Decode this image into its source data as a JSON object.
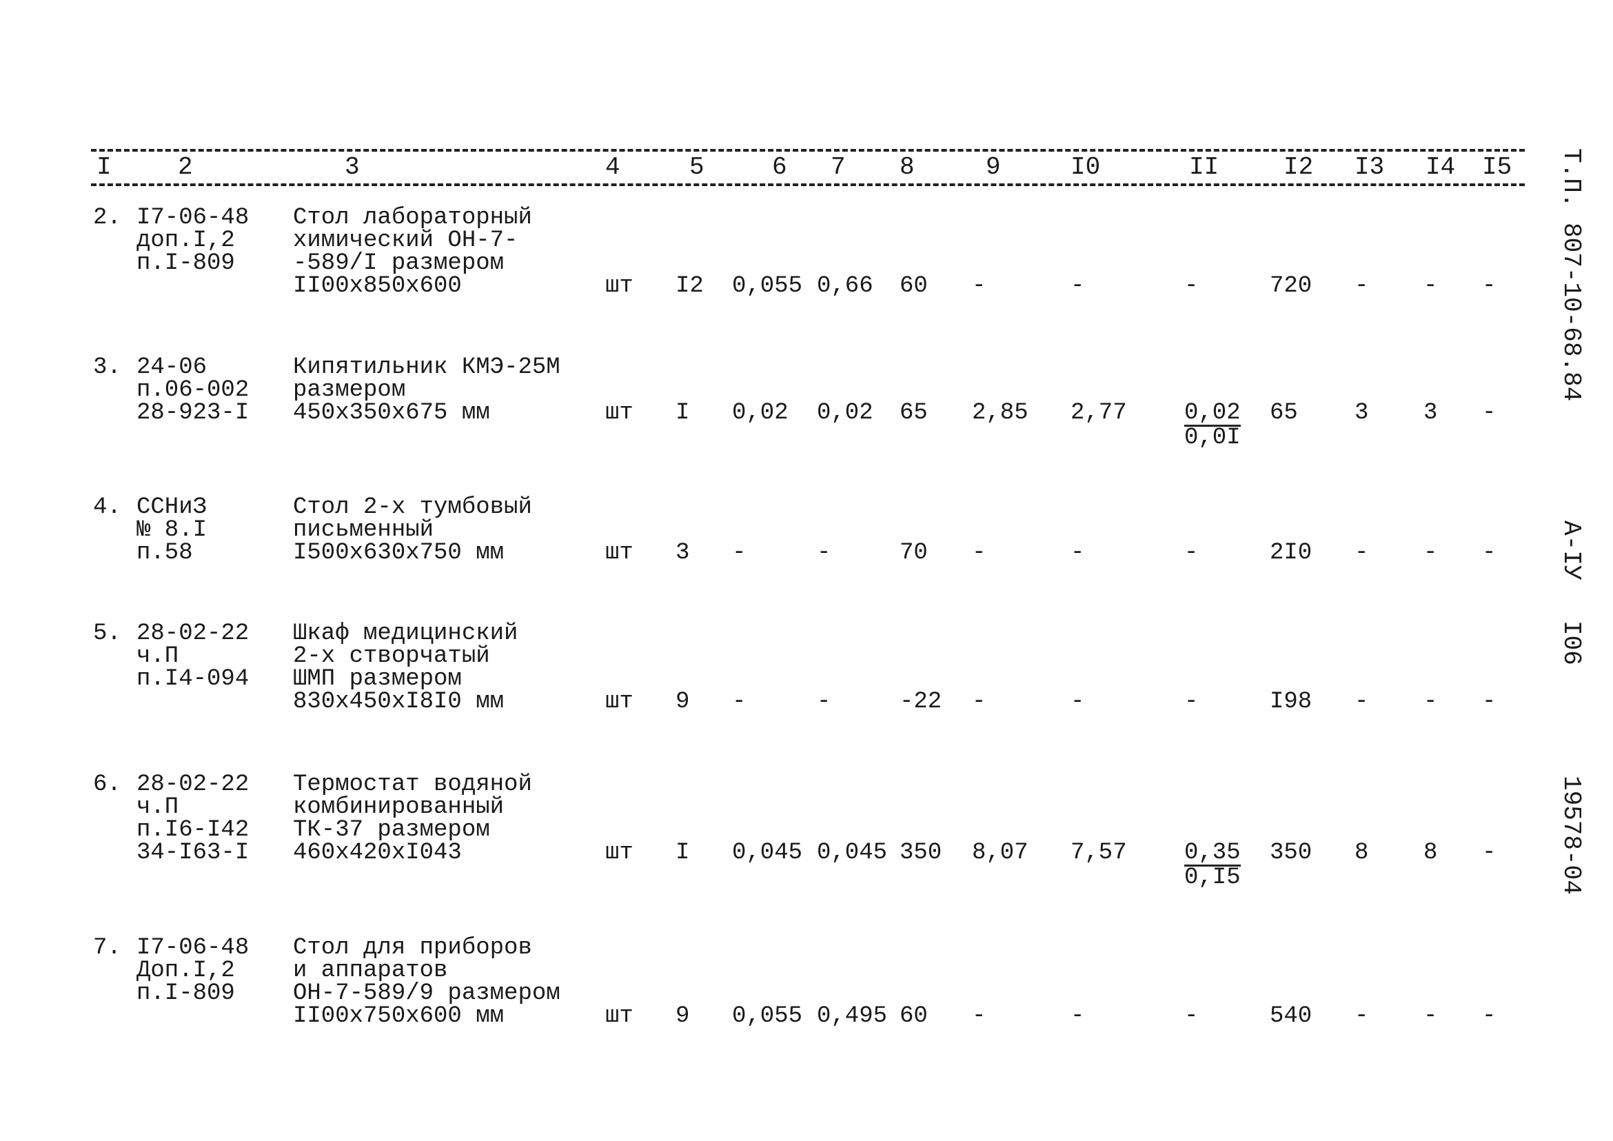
{
  "header": {
    "columns": [
      "I",
      "2",
      "3",
      "4",
      "5",
      "6",
      "7",
      "8",
      "9",
      "I0",
      "II",
      "I2",
      "I3",
      "I4",
      "I5"
    ]
  },
  "rows": [
    {
      "no": "2.",
      "code": [
        "I7-06-48",
        "доп.I,2",
        "п.I-809"
      ],
      "description": [
        "Стол лабораторный",
        "химический ОН-7-",
        "-589/I размером",
        "II00x850x600"
      ],
      "unit": "шт",
      "c5": "I2",
      "c6": "0,055",
      "c7": "0,66",
      "c8": "60",
      "c9": "-",
      "c10": "-",
      "c11": "-",
      "c12": "720",
      "c13": "-",
      "c14": "-",
      "c15": "-"
    },
    {
      "no": "3.",
      "code": [
        "24-06",
        "п.06-002",
        "28-923-I"
      ],
      "description": [
        "Кипятильник КМЭ-25М",
        "размером",
        "450x350x675 мм"
      ],
      "unit": "шт",
      "c5": "I",
      "c6": "0,02",
      "c7": "0,02",
      "c8": "65",
      "c9": "2,85",
      "c10": "2,77",
      "c11": {
        "top": "0,02",
        "bottom": "0,0I"
      },
      "c12": "65",
      "c13": "3",
      "c14": "3",
      "c15": "-"
    },
    {
      "no": "4.",
      "code": [
        "ССНиЗ",
        "№ 8.I",
        "п.58"
      ],
      "description": [
        "Стол 2-х тумбовый",
        "письменный",
        "I500x630x750 мм"
      ],
      "unit": "шт",
      "c5": "3",
      "c6": "-",
      "c7": "-",
      "c8": "70",
      "c9": "-",
      "c10": "-",
      "c11": "-",
      "c12": "2I0",
      "c13": "-",
      "c14": "-",
      "c15": "-"
    },
    {
      "no": "5.",
      "code": [
        "28-02-22",
        "ч.П",
        "п.I4-094"
      ],
      "description": [
        "Шкаф медицинский",
        "2-х створчатый",
        "ШМП размером",
        "830x450xI8I0 мм"
      ],
      "unit": "шт",
      "c5": "9",
      "c6": "-",
      "c7": "-",
      "c8": "-22",
      "c9": "-",
      "c10": "-",
      "c11": "-",
      "c12": "I98",
      "c13": "-",
      "c14": "-",
      "c15": "-"
    },
    {
      "no": "6.",
      "code": [
        "28-02-22",
        "ч.П",
        "п.I6-I42",
        "34-I63-I"
      ],
      "description": [
        "Термостат водяной",
        "комбинированный",
        "ТК-37 размером",
        "460x420xI043"
      ],
      "unit": "шт",
      "c5": "I",
      "c6": "0,045",
      "c7": "0,045",
      "c8": "350",
      "c9": "8,07",
      "c10": "7,57",
      "c11": {
        "top": "0,35",
        "bottom": "0,I5"
      },
      "c12": "350",
      "c13": "8",
      "c14": "8",
      "c15": "-"
    },
    {
      "no": "7.",
      "code": [
        "I7-06-48",
        "Доп.I,2",
        "п.I-809"
      ],
      "description": [
        "Стол для приборов",
        "и аппаратов",
        "ОН-7-589/9 размером",
        "II00x750x600 мм"
      ],
      "unit": "шт",
      "c5": "9",
      "c6": "0,055",
      "c7": "0,495",
      "c8": "60",
      "c9": "-",
      "c10": "-",
      "c11": "-",
      "c12": "540",
      "c13": "-",
      "c14": "-",
      "c15": "-"
    }
  ],
  "side_margin": {
    "project_code": "Т.П. 807-10-68.84",
    "album": "А-IУ",
    "page": "I06",
    "inventory": "19578-04"
  }
}
